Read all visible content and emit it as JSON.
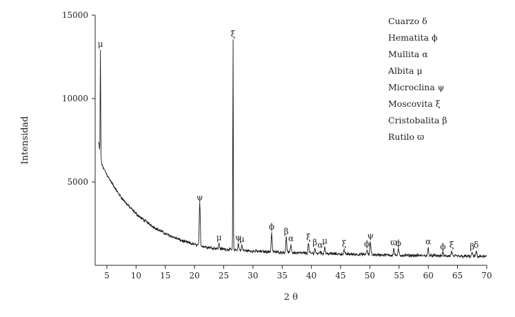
{
  "chart_data": {
    "type": "line",
    "title": "",
    "xlabel": "2 θ",
    "ylabel": "Intensidad",
    "xlim": [
      3,
      70
    ],
    "ylim": [
      0,
      15000
    ],
    "x_ticks": [
      5,
      10,
      15,
      20,
      25,
      30,
      35,
      40,
      45,
      50,
      55,
      60,
      65,
      70
    ],
    "y_ticks": [
      5000,
      10000,
      15000
    ],
    "grid": false,
    "legend_position": "top-right",
    "legend": [
      {
        "name": "Cuarzo",
        "symbol": "δ"
      },
      {
        "name": "Hematita",
        "symbol": "ϕ"
      },
      {
        "name": "Mullita",
        "symbol": "α"
      },
      {
        "name": "Albita",
        "symbol": "μ"
      },
      {
        "name": "Microclina",
        "symbol": "ψ"
      },
      {
        "name": "Moscovita",
        "symbol": "ξ"
      },
      {
        "name": "Cristobalita",
        "symbol": "β"
      },
      {
        "name": "Rutilo",
        "symbol": "ϖ"
      }
    ],
    "background": {
      "x": [
        3.6,
        3.9,
        4.2,
        4.6,
        5,
        5.5,
        6,
        7,
        8,
        9,
        10,
        11,
        12,
        13,
        14,
        15,
        16,
        17,
        18,
        19,
        20,
        22,
        24,
        26,
        28,
        30,
        32,
        35,
        38,
        40,
        45,
        50,
        55,
        60,
        65,
        70
      ],
      "y": [
        7400,
        6500,
        6000,
        5700,
        5450,
        5150,
        4850,
        4300,
        3850,
        3450,
        3100,
        2800,
        2550,
        2300,
        2100,
        1900,
        1750,
        1600,
        1450,
        1350,
        1250,
        1100,
        1000,
        950,
        900,
        850,
        820,
        780,
        740,
        720,
        680,
        640,
        600,
        580,
        550,
        520
      ]
    },
    "peaks": [
      {
        "x": 3.9,
        "y": 12900,
        "label": "μ"
      },
      {
        "x": 20.9,
        "y": 3700,
        "label": "ψ"
      },
      {
        "x": 24.2,
        "y": 1300,
        "label": "μ"
      },
      {
        "x": 26.6,
        "y": 13500,
        "label": "ξ"
      },
      {
        "x": 27.5,
        "y": 1300,
        "label": "ψ"
      },
      {
        "x": 28.1,
        "y": 1200,
        "label": "μ"
      },
      {
        "x": 33.2,
        "y": 1950,
        "label": "ϕ"
      },
      {
        "x": 35.7,
        "y": 1650,
        "label": "β"
      },
      {
        "x": 36.5,
        "y": 1250,
        "label": "α"
      },
      {
        "x": 39.5,
        "y": 1300,
        "label": "ξ"
      },
      {
        "x": 40.6,
        "y": 1000,
        "label": "β"
      },
      {
        "x": 41.5,
        "y": 850,
        "label": "α"
      },
      {
        "x": 42.3,
        "y": 1100,
        "label": "μ"
      },
      {
        "x": 45.6,
        "y": 900,
        "label": "ξ"
      },
      {
        "x": 49.5,
        "y": 900,
        "label": "ϕ"
      },
      {
        "x": 50.1,
        "y": 1400,
        "label": "ψ"
      },
      {
        "x": 54.1,
        "y": 1000,
        "label": "ϖ"
      },
      {
        "x": 54.9,
        "y": 950,
        "label": "ϕ"
      },
      {
        "x": 60.0,
        "y": 1050,
        "label": "α"
      },
      {
        "x": 62.5,
        "y": 750,
        "label": "ϕ"
      },
      {
        "x": 64.0,
        "y": 850,
        "label": "ξ"
      },
      {
        "x": 67.5,
        "y": 750,
        "label": "β"
      },
      {
        "x": 68.2,
        "y": 850,
        "label": "δ"
      }
    ]
  }
}
